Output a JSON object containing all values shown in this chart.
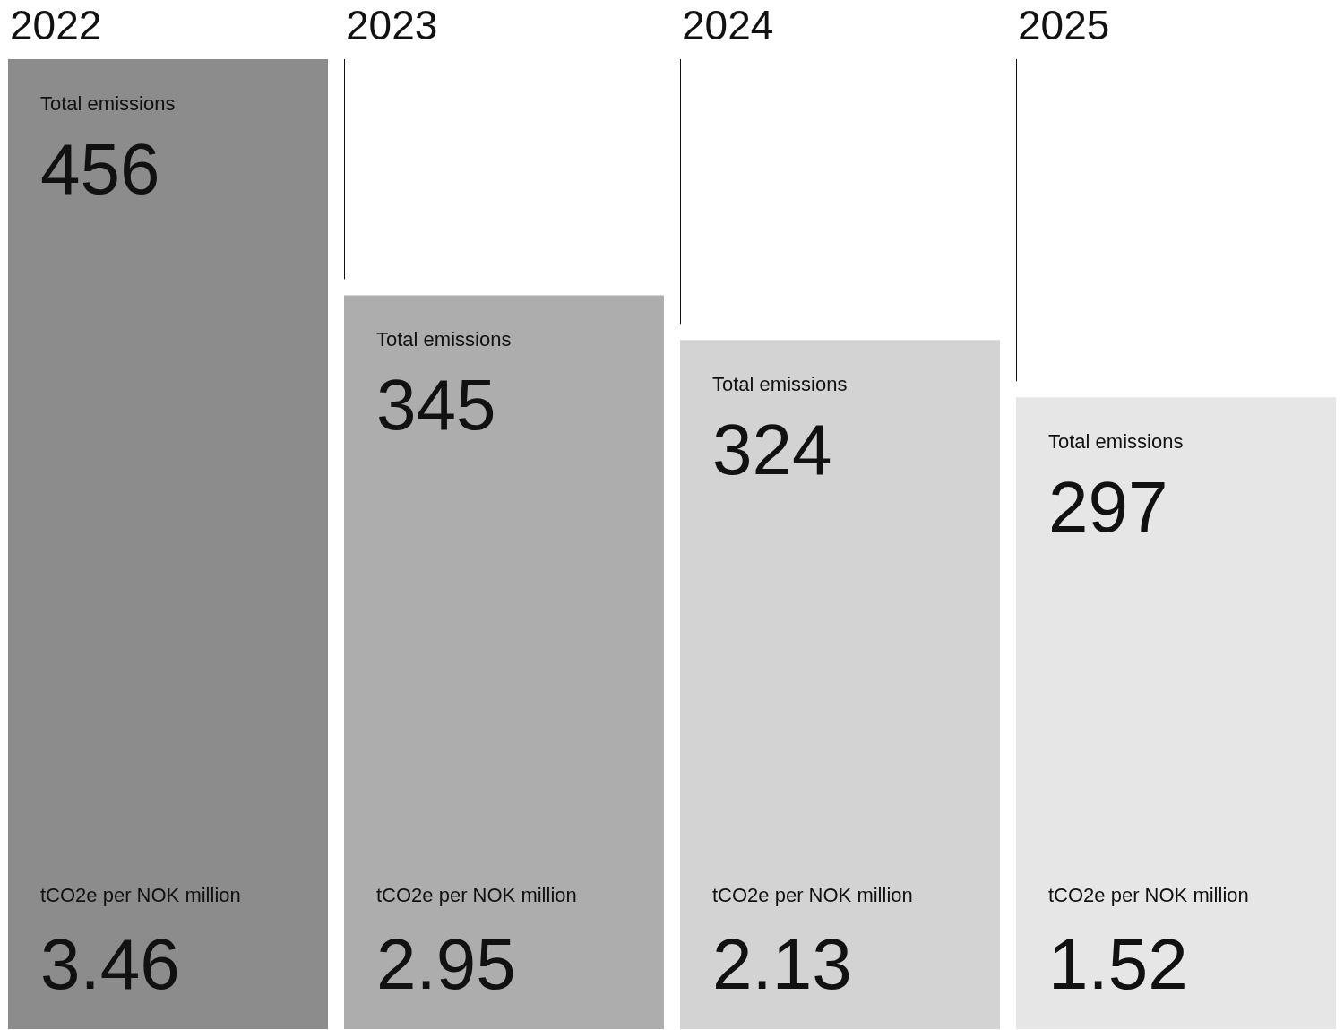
{
  "chart_data": {
    "type": "bar",
    "categories": [
      "2022",
      "2023",
      "2024",
      "2025"
    ],
    "series": [
      {
        "name": "Total emissions",
        "colors": [
          "#8c8c8c",
          "#adadad",
          "#d3d3d3",
          "#e6e6e6"
        ],
        "values": [
          456,
          345,
          324,
          297
        ]
      }
    ],
    "data_labels": true,
    "annotations": [
      "tCO2e per NOK million",
      "3.46",
      "tCO2e per NOK million",
      "2.95",
      "tCO2e per NOK million",
      "2.13",
      "tCO2e per NOK million",
      "1.52"
    ]
  }
}
